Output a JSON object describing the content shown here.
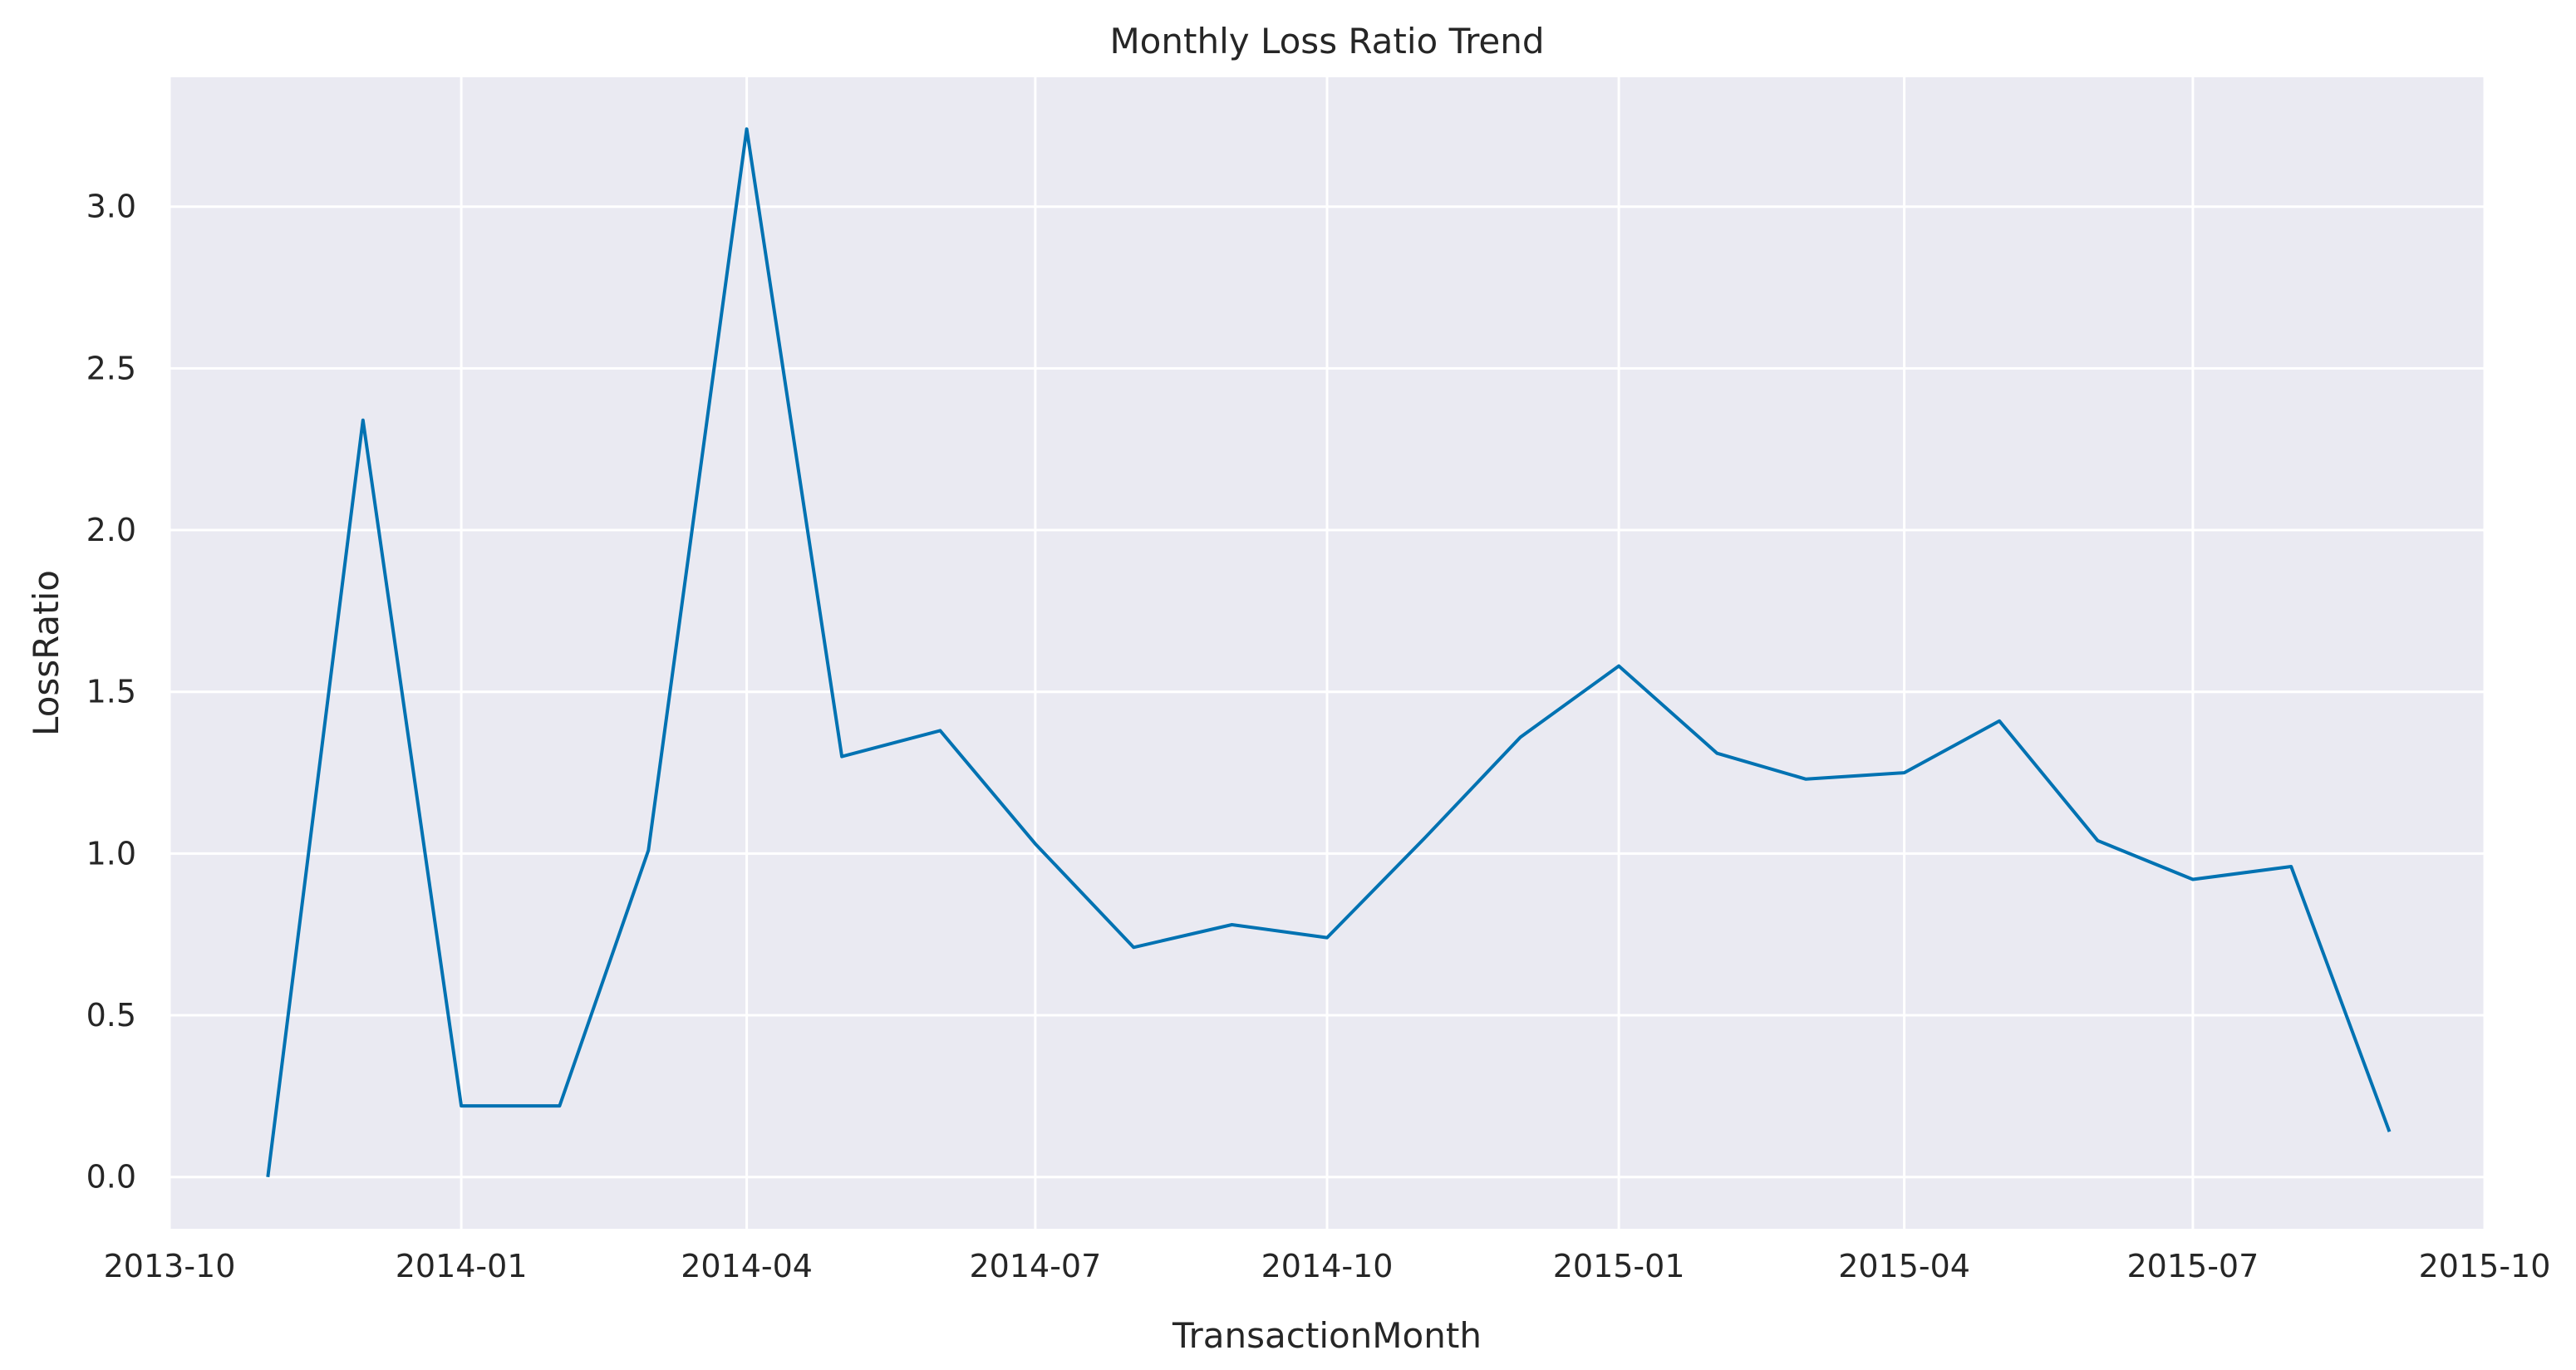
{
  "chart_data": {
    "type": "line",
    "title": "Monthly Loss Ratio Trend",
    "xlabel": "TransactionMonth",
    "ylabel": "LossRatio",
    "xlim": [
      "2013-10-01",
      "2015-10-01"
    ],
    "ylim": [
      -0.16,
      3.4
    ],
    "grid": true,
    "x_ticks": [
      "2013-10",
      "2014-01",
      "2014-04",
      "2014-07",
      "2014-10",
      "2015-01",
      "2015-04",
      "2015-07",
      "2015-10"
    ],
    "y_ticks": [
      "0.0",
      "0.5",
      "1.0",
      "1.5",
      "2.0",
      "2.5",
      "3.0"
    ],
    "colors": {
      "line": "#0072b2",
      "background": "#eaeaf2",
      "grid": "#ffffff"
    },
    "series": [
      {
        "x": [
          "2013-11-01",
          "2013-12-01",
          "2014-01-01",
          "2014-02-01",
          "2014-03-01",
          "2014-04-01",
          "2014-05-01",
          "2014-06-01",
          "2014-07-01",
          "2014-08-01",
          "2014-09-01",
          "2014-10-01",
          "2014-11-01",
          "2014-12-01",
          "2015-01-01",
          "2015-02-01",
          "2015-03-01",
          "2015-04-01",
          "2015-05-01",
          "2015-06-01",
          "2015-07-01",
          "2015-08-01",
          "2015-09-01"
        ],
        "values": [
          0.0,
          2.34,
          0.22,
          0.22,
          1.01,
          3.24,
          1.3,
          1.38,
          1.03,
          0.71,
          0.78,
          0.74,
          1.05,
          1.36,
          1.58,
          1.31,
          1.23,
          1.25,
          1.41,
          1.04,
          0.92,
          0.96,
          0.14
        ]
      }
    ]
  }
}
